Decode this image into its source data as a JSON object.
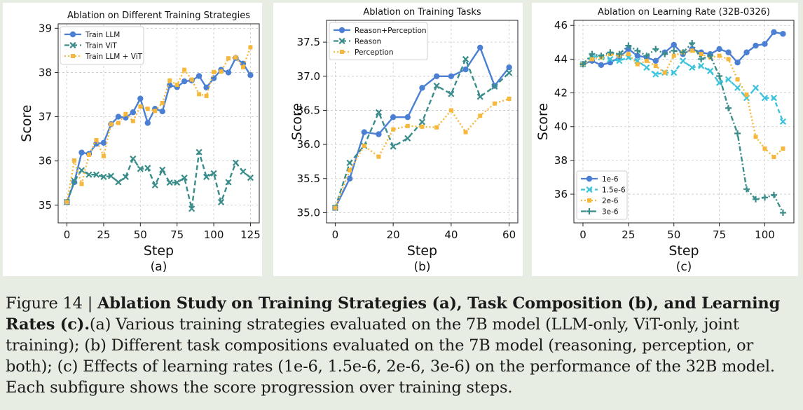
{
  "figure": {
    "caption_prefix": "Figure 14 | ",
    "caption_bold": "Ablation Study on Training Strategies (a), Task Composition (b), and Learning Rates (c).",
    "caption_text": "(a) Various training strategies evaluated on the 7B model (LLM-only, ViT-only, joint training); (b) Different task compositions evaluated on the 7B model (reasoning, perception, or both); (c) Effects of learning rates (1e-6, 1.5e-6, 2e-6, 3e-6) on the performance of the 32B model. Each subfigure shows the score progression over training steps."
  },
  "chart_data": [
    {
      "type": "line",
      "title": "Ablation on Different Training Strategies",
      "sublabel": "(a)",
      "xlabel": "Step",
      "ylabel": "Score",
      "xlim": [
        -6,
        131
      ],
      "ylim": [
        34.6,
        39.1
      ],
      "xticks": [
        0,
        25,
        50,
        75,
        100,
        125
      ],
      "yticks": [
        35,
        36,
        37,
        38,
        39
      ],
      "grid": true,
      "legend": "top-left",
      "x": [
        0,
        5,
        10,
        15,
        20,
        25,
        30,
        35,
        40,
        45,
        50,
        55,
        60,
        65,
        70,
        75,
        80,
        85,
        90,
        95,
        100,
        105,
        110,
        115,
        120,
        125
      ],
      "series": [
        {
          "name": "Train LLM",
          "color": "#4a7fd4",
          "dash": "",
          "marker": "circle",
          "values": [
            35.07,
            35.52,
            36.19,
            36.16,
            36.39,
            36.41,
            36.83,
            37.0,
            36.98,
            37.1,
            37.41,
            36.86,
            37.18,
            37.12,
            37.71,
            37.67,
            37.8,
            37.82,
            37.92,
            37.66,
            37.87,
            38.06,
            38.0,
            38.33,
            38.2,
            37.94
          ]
        },
        {
          "name": "Train ViT",
          "color": "#3a8d8a",
          "dash": "7,4",
          "marker": "x",
          "values": [
            35.07,
            35.55,
            35.79,
            35.69,
            35.69,
            35.64,
            35.66,
            35.52,
            35.64,
            36.05,
            35.82,
            35.84,
            35.45,
            35.8,
            35.51,
            35.51,
            35.62,
            34.92,
            36.2,
            35.64,
            35.72,
            35.07,
            35.52,
            35.96,
            35.76,
            35.62
          ]
        },
        {
          "name": "Train LLM + ViT",
          "color": "#f5b83c",
          "dash": "2,3",
          "marker": "square",
          "values": [
            35.07,
            36.01,
            35.48,
            36.14,
            36.47,
            36.11,
            36.83,
            36.86,
            37.06,
            36.9,
            37.23,
            37.18,
            37.13,
            37.31,
            37.82,
            37.72,
            38.06,
            37.84,
            37.51,
            37.47,
            38.01,
            38.02,
            38.32,
            38.34,
            38.12,
            38.57
          ]
        }
      ]
    },
    {
      "type": "line",
      "title": "Ablation on Training Tasks",
      "sublabel": "(b)",
      "xlabel": "Step",
      "ylabel": "Score",
      "xlim": [
        -3,
        63
      ],
      "ylim": [
        34.85,
        37.82
      ],
      "xticks": [
        0,
        20,
        40,
        60
      ],
      "yticks": [
        35.0,
        35.5,
        36.0,
        36.5,
        37.0,
        37.5
      ],
      "yticklabels": [
        "35.0",
        "35.5",
        "36.0",
        "36.5",
        "37.0",
        "37.5"
      ],
      "grid": true,
      "legend": "top-left",
      "x": [
        0,
        5,
        10,
        15,
        20,
        25,
        30,
        35,
        40,
        45,
        50,
        55,
        60
      ],
      "series": [
        {
          "name": "Reason+Perception",
          "color": "#4a7fd4",
          "dash": "",
          "marker": "circle",
          "values": [
            35.07,
            35.5,
            36.18,
            36.15,
            36.4,
            36.4,
            36.83,
            37.0,
            37.0,
            37.1,
            37.42,
            36.86,
            37.13
          ]
        },
        {
          "name": "Reason",
          "color": "#3a8d8a",
          "dash": "7,4",
          "marker": "x",
          "values": [
            35.07,
            35.73,
            35.98,
            36.47,
            35.97,
            36.09,
            36.33,
            36.86,
            36.74,
            37.25,
            36.7,
            36.85,
            37.05
          ]
        },
        {
          "name": "Perception",
          "color": "#f5b83c",
          "dash": "2,3",
          "marker": "square",
          "values": [
            35.07,
            35.62,
            35.98,
            35.82,
            36.22,
            36.27,
            36.26,
            36.25,
            36.5,
            36.18,
            36.42,
            36.6,
            36.67
          ]
        }
      ]
    },
    {
      "type": "line",
      "title": "Ablation on Learning Rate (32B-0326)",
      "sublabel": "(c)",
      "xlabel": "Step",
      "ylabel": "Score",
      "xlim": [
        -5,
        116
      ],
      "ylim": [
        34.3,
        46.3
      ],
      "xticks": [
        0,
        25,
        50,
        75,
        100
      ],
      "yticks": [
        36,
        38,
        40,
        42,
        44,
        46
      ],
      "grid": true,
      "legend": "bottom-left",
      "x": [
        0,
        5,
        10,
        15,
        20,
        25,
        30,
        35,
        40,
        45,
        50,
        55,
        60,
        65,
        70,
        75,
        80,
        85,
        90,
        95,
        100,
        105,
        110
      ],
      "series": [
        {
          "name": "1e-6",
          "color": "#4a7fd4",
          "dash": "",
          "marker": "circle",
          "values": [
            43.7,
            43.9,
            43.65,
            43.8,
            44.1,
            44.6,
            44.2,
            44.1,
            43.9,
            44.4,
            44.85,
            44.3,
            44.6,
            44.4,
            44.3,
            44.6,
            44.4,
            43.8,
            44.4,
            44.8,
            44.9,
            45.6,
            45.5
          ]
        },
        {
          "name": "1.5e-6",
          "color": "#3cc4dc",
          "dash": "6,4",
          "marker": "x",
          "values": [
            43.7,
            44.2,
            44.1,
            44.0,
            43.9,
            44.1,
            43.9,
            43.5,
            43.1,
            43.2,
            43.2,
            43.9,
            43.5,
            43.6,
            43.3,
            42.6,
            42.8,
            42.3,
            41.7,
            42.3,
            41.7,
            41.7,
            40.3
          ]
        },
        {
          "name": "2e-6",
          "color": "#f5b83c",
          "dash": "2,3",
          "marker": "square",
          "values": [
            43.7,
            44.0,
            44.1,
            44.3,
            44.2,
            44.3,
            43.7,
            43.9,
            43.6,
            43.2,
            44.2,
            44.4,
            44.5,
            44.3,
            44.1,
            44.2,
            44.0,
            42.8,
            41.9,
            39.4,
            38.7,
            38.2,
            38.7
          ]
        },
        {
          "name": "3e-6",
          "color": "#3a8d8a",
          "dash": "7,3,2,3",
          "marker": "plus",
          "values": [
            43.7,
            44.3,
            44.2,
            44.4,
            44.3,
            44.8,
            44.5,
            44.2,
            44.6,
            44.3,
            44.5,
            44.4,
            44.95,
            44.0,
            44.2,
            43.0,
            41.1,
            39.6,
            36.3,
            35.7,
            35.8,
            35.95,
            34.9
          ]
        }
      ]
    }
  ]
}
